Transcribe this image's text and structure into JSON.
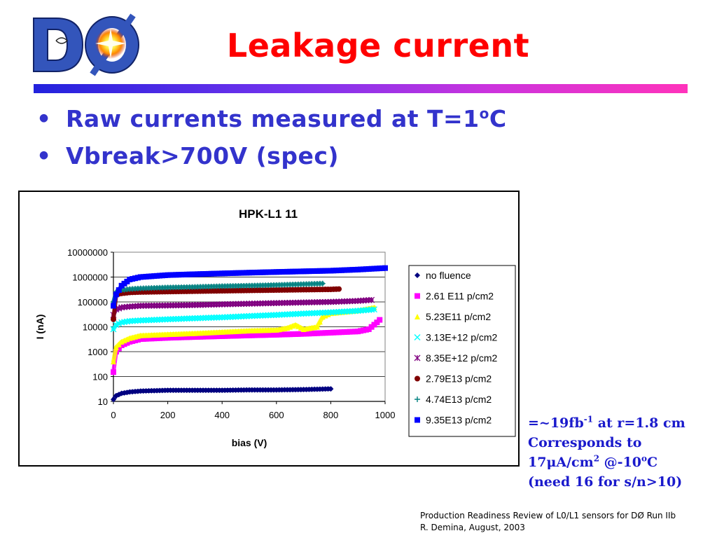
{
  "slide": {
    "title": "Leakage current",
    "bullets": [
      {
        "text": "Raw currents measured at T=1",
        "sup": "o",
        "tail": "C"
      },
      {
        "text": "Vbreak>700V (spec)",
        "sup": "",
        "tail": ""
      }
    ],
    "logo": {
      "text": "DØ"
    },
    "note": {
      "line1_a": "=~19fb",
      "line1_sup": "-1",
      "line1_b": " at r=1.8 cm",
      "line2": "Corresponds to",
      "line3_a": "17μA/cm",
      "line3_sup": "2",
      "line3_b": " @-10",
      "line3_sup2": "o",
      "line3_c": "C",
      "line4": "(need 16 for s/n>10)"
    },
    "footer": {
      "line1": "Production Readiness Review of L0/L1 sensors for DØ Run IIb",
      "line2": "R. Demina, August, 2003"
    },
    "colors": {
      "title": "#ff0000",
      "bullet": "#3333cc",
      "note": "#1a1acc"
    }
  },
  "chart_data": {
    "type": "scatter",
    "title": "HPK-L1 11",
    "xlabel": "bias (V)",
    "ylabel": "I (nA)",
    "xlim": [
      0,
      1000
    ],
    "ylim": [
      10,
      10000000
    ],
    "yscale": "log",
    "x_ticks": [
      "0",
      "200",
      "400",
      "600",
      "800",
      "1000"
    ],
    "y_ticks": [
      "10",
      "100",
      "1000",
      "10000",
      "100000",
      "1000000",
      "10000000"
    ],
    "legend_position": "right",
    "grid": true,
    "series": [
      {
        "name": "no fluence",
        "marker": "diamond",
        "color": "#000080",
        "points": [
          [
            0,
            12
          ],
          [
            10,
            17
          ],
          [
            30,
            21
          ],
          [
            60,
            24
          ],
          [
            100,
            26
          ],
          [
            200,
            28
          ],
          [
            300,
            28
          ],
          [
            400,
            28
          ],
          [
            500,
            29
          ],
          [
            600,
            29
          ],
          [
            700,
            30
          ],
          [
            800,
            32
          ]
        ]
      },
      {
        "name": "2.61 E11 p/cm2",
        "marker": "square",
        "color": "#ff00ff",
        "points": [
          [
            0,
            150
          ],
          [
            10,
            1000
          ],
          [
            30,
            1800
          ],
          [
            60,
            2500
          ],
          [
            100,
            3200
          ],
          [
            200,
            3600
          ],
          [
            300,
            3900
          ],
          [
            400,
            4200
          ],
          [
            500,
            4500
          ],
          [
            600,
            4800
          ],
          [
            700,
            5200
          ],
          [
            800,
            5800
          ],
          [
            900,
            6500
          ],
          [
            940,
            8000
          ],
          [
            970,
            15000
          ],
          [
            980,
            19000
          ]
        ]
      },
      {
        "name": "5.23E11 p/cm2",
        "marker": "triangle",
        "color": "#ffff00",
        "points": [
          [
            0,
            400
          ],
          [
            10,
            1500
          ],
          [
            30,
            2500
          ],
          [
            60,
            3500
          ],
          [
            100,
            4500
          ],
          [
            200,
            5000
          ],
          [
            300,
            5500
          ],
          [
            400,
            6200
          ],
          [
            500,
            7000
          ],
          [
            600,
            7500
          ],
          [
            640,
            9000
          ],
          [
            670,
            12000
          ],
          [
            700,
            8000
          ],
          [
            750,
            10000
          ],
          [
            770,
            25000
          ],
          [
            800,
            35000
          ],
          [
            900,
            45000
          ],
          [
            960,
            60000
          ]
        ]
      },
      {
        "name": "3.13E+12 p/cm2",
        "marker": "x",
        "color": "#00ffff",
        "points": [
          [
            0,
            8000
          ],
          [
            10,
            12000
          ],
          [
            30,
            15000
          ],
          [
            60,
            17000
          ],
          [
            100,
            18000
          ],
          [
            200,
            20000
          ],
          [
            300,
            22000
          ],
          [
            400,
            24000
          ],
          [
            500,
            27000
          ],
          [
            600,
            30000
          ],
          [
            700,
            34000
          ],
          [
            800,
            38000
          ],
          [
            900,
            44000
          ],
          [
            960,
            50000
          ]
        ]
      },
      {
        "name": "8.35E+12 p/cm2",
        "marker": "star",
        "color": "#800080",
        "points": [
          [
            0,
            30000
          ],
          [
            10,
            50000
          ],
          [
            30,
            60000
          ],
          [
            60,
            65000
          ],
          [
            100,
            70000
          ],
          [
            200,
            72000
          ],
          [
            300,
            75000
          ],
          [
            400,
            80000
          ],
          [
            500,
            85000
          ],
          [
            600,
            90000
          ],
          [
            700,
            95000
          ],
          [
            800,
            100000
          ],
          [
            900,
            110000
          ],
          [
            950,
            120000
          ]
        ]
      },
      {
        "name": "2.79E13 p/cm2",
        "marker": "circle",
        "color": "#800000",
        "points": [
          [
            0,
            20000
          ],
          [
            10,
            200000
          ],
          [
            30,
            220000
          ],
          [
            60,
            240000
          ],
          [
            100,
            250000
          ],
          [
            200,
            260000
          ],
          [
            300,
            270000
          ],
          [
            400,
            280000
          ],
          [
            500,
            290000
          ],
          [
            600,
            300000
          ],
          [
            700,
            310000
          ],
          [
            800,
            320000
          ],
          [
            830,
            330000
          ]
        ]
      },
      {
        "name": "4.74E13 p/cm2",
        "marker": "plus",
        "color": "#008080",
        "points": [
          [
            0,
            100000
          ],
          [
            10,
            250000
          ],
          [
            30,
            300000
          ],
          [
            60,
            330000
          ],
          [
            100,
            350000
          ],
          [
            200,
            380000
          ],
          [
            300,
            400000
          ],
          [
            400,
            430000
          ],
          [
            500,
            450000
          ],
          [
            600,
            480000
          ],
          [
            700,
            520000
          ],
          [
            770,
            550000
          ]
        ]
      },
      {
        "name": "9.35E13 p/cm2",
        "marker": "square",
        "color": "#0000ff",
        "points": [
          [
            0,
            70000
          ],
          [
            10,
            200000
          ],
          [
            30,
            450000
          ],
          [
            60,
            800000
          ],
          [
            100,
            1000000
          ],
          [
            200,
            1200000
          ],
          [
            300,
            1300000
          ],
          [
            400,
            1400000
          ],
          [
            500,
            1500000
          ],
          [
            600,
            1600000
          ],
          [
            700,
            1700000
          ],
          [
            800,
            1800000
          ],
          [
            900,
            2000000
          ],
          [
            1000,
            2300000
          ]
        ]
      }
    ]
  }
}
